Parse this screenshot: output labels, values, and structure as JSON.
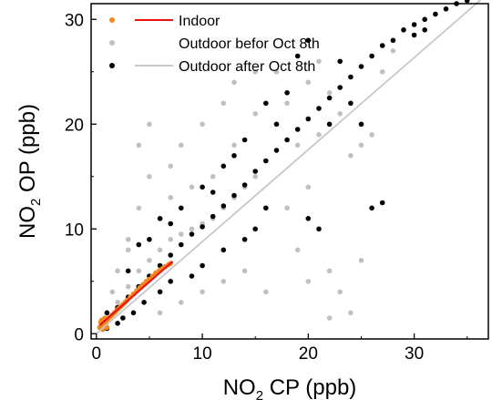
{
  "chart_data": {
    "type": "scatter",
    "xlabel": {
      "base": "NO",
      "sub": "2",
      "rest": " CP (ppb)"
    },
    "ylabel": {
      "base": "NO",
      "sub": "2",
      "rest": " OP (ppb)"
    },
    "xlim": [
      -0.5,
      37
    ],
    "ylim": [
      -0.5,
      31.5
    ],
    "xticks": [
      0,
      10,
      20,
      30
    ],
    "yticks": [
      0,
      10,
      20,
      30
    ],
    "legend_position": "top-left",
    "series": [
      {
        "name": "Outdoor befor Oct 8th",
        "color": "#c0c0c0",
        "marker": "dot",
        "approx_points": [
          [
            1.0,
            1.5
          ],
          [
            2.0,
            3.0
          ],
          [
            3.0,
            4.5
          ],
          [
            4.0,
            6.0
          ],
          [
            5.0,
            7.0
          ],
          [
            6.0,
            8.0
          ],
          [
            7.0,
            9.0
          ],
          [
            8.0,
            9.5
          ],
          [
            9.0,
            10.0
          ],
          [
            10.0,
            10.5
          ],
          [
            11.0,
            11.0
          ],
          [
            12.0,
            12.0
          ],
          [
            13.0,
            13.0
          ],
          [
            14.0,
            14.0
          ],
          [
            15.0,
            15.0
          ],
          [
            3.0,
            8.0
          ],
          [
            4.0,
            12.0
          ],
          [
            5.0,
            15.0
          ],
          [
            4.0,
            18.0
          ],
          [
            5.0,
            20.0
          ],
          [
            7.0,
            16.0
          ],
          [
            8.0,
            18.0
          ],
          [
            10.0,
            20.0
          ],
          [
            12.0,
            22.0
          ],
          [
            13.0,
            24.0
          ],
          [
            15.0,
            25.0
          ],
          [
            17.0,
            25.0
          ],
          [
            18.0,
            22.0
          ],
          [
            20.0,
            24.0
          ],
          [
            21.0,
            26.0
          ],
          [
            22.0,
            23.0
          ],
          [
            20.0,
            14.0
          ],
          [
            18.0,
            12.0
          ],
          [
            19.0,
            8.0
          ],
          [
            20.0,
            5.0
          ],
          [
            22.0,
            6.0
          ],
          [
            23.0,
            4.0
          ],
          [
            24.0,
            2.0
          ],
          [
            22.0,
            1.5
          ],
          [
            25.0,
            7.0
          ],
          [
            16.0,
            4.0
          ],
          [
            14.0,
            6.0
          ],
          [
            12.0,
            5.0
          ],
          [
            10.0,
            4.0
          ],
          [
            6.0,
            2.0
          ],
          [
            8.0,
            3.0
          ],
          [
            2.0,
            6.0
          ],
          [
            3.0,
            9.0
          ],
          [
            1.5,
            4.0
          ],
          [
            6.0,
            11.0
          ],
          [
            7.0,
            13.0
          ],
          [
            9.0,
            14.0
          ],
          [
            11.0,
            15.0
          ],
          [
            13.0,
            18.0
          ],
          [
            15.0,
            21.0
          ],
          [
            17.0,
            20.0
          ],
          [
            19.0,
            18.0
          ],
          [
            21.0,
            19.0
          ],
          [
            23.0,
            21.0
          ],
          [
            24.0,
            17.0
          ],
          [
            25.0,
            18.0
          ],
          [
            26.0,
            19.0
          ],
          [
            27.0,
            25.0
          ],
          [
            28.0,
            27.0
          ]
        ]
      },
      {
        "name": "Outdoor after Oct 8th",
        "color": "#000000",
        "marker": "dot",
        "approx_points": [
          [
            1.0,
            2.0
          ],
          [
            2.0,
            2.5
          ],
          [
            3.0,
            3.5
          ],
          [
            4.0,
            4.5
          ],
          [
            5.0,
            5.5
          ],
          [
            6.0,
            6.5
          ],
          [
            7.0,
            7.5
          ],
          [
            8.0,
            8.5
          ],
          [
            9.0,
            9.5
          ],
          [
            10.0,
            10.2
          ],
          [
            11.0,
            11.2
          ],
          [
            12.0,
            12.2
          ],
          [
            13.0,
            13.2
          ],
          [
            14.0,
            14.2
          ],
          [
            15.0,
            15.5
          ],
          [
            16.0,
            16.5
          ],
          [
            17.0,
            17.5
          ],
          [
            18.0,
            18.5
          ],
          [
            19.0,
            19.5
          ],
          [
            20.0,
            20.5
          ],
          [
            21.0,
            21.5
          ],
          [
            22.0,
            22.5
          ],
          [
            23.0,
            23.5
          ],
          [
            24.0,
            24.5
          ],
          [
            25.0,
            25.5
          ],
          [
            26.0,
            26.5
          ],
          [
            27.0,
            27.5
          ],
          [
            28.0,
            28.0
          ],
          [
            29.0,
            29.0
          ],
          [
            30.0,
            29.5
          ],
          [
            31.0,
            30.0
          ],
          [
            32.0,
            30.5
          ],
          [
            33.0,
            31.0
          ],
          [
            34.0,
            31.5
          ],
          [
            35.0,
            31.8
          ],
          [
            30.0,
            28.5
          ],
          [
            31.0,
            29.0
          ],
          [
            16.0,
            22.0
          ],
          [
            18.0,
            23.0
          ],
          [
            19.0,
            26.5
          ],
          [
            20.0,
            28.0
          ],
          [
            22.0,
            20.0
          ],
          [
            25.0,
            20.0
          ],
          [
            26.0,
            12.0
          ],
          [
            27.0,
            12.5
          ],
          [
            21.0,
            10.0
          ],
          [
            20.0,
            11.0
          ],
          [
            12.0,
            8.0
          ],
          [
            10.0,
            6.5
          ],
          [
            9.0,
            5.5
          ],
          [
            14.0,
            9.0
          ],
          [
            16.0,
            12.0
          ],
          [
            15.0,
            10.0
          ],
          [
            3.0,
            6.0
          ],
          [
            4.0,
            8.5
          ],
          [
            5.0,
            9.0
          ],
          [
            6.0,
            11.0
          ],
          [
            7.0,
            10.5
          ],
          [
            8.0,
            12.0
          ],
          [
            10.0,
            14.0
          ],
          [
            11.0,
            13.5
          ],
          [
            12.0,
            16.0
          ],
          [
            13.0,
            17.0
          ],
          [
            14.0,
            18.5
          ],
          [
            17.0,
            20.0
          ],
          [
            23.0,
            26.0
          ],
          [
            24.0,
            22.0
          ],
          [
            2.5,
            1.5
          ],
          [
            3.5,
            2.0
          ],
          [
            4.5,
            3.0
          ],
          [
            1.0,
            0.5
          ],
          [
            2.0,
            1.0
          ],
          [
            6.0,
            4.0
          ],
          [
            7.0,
            5.0
          ]
        ]
      },
      {
        "name": "Indoor",
        "color": "#f08a1e",
        "marker": "dot",
        "approx_points": [
          [
            0.3,
            0.6
          ],
          [
            0.5,
            0.8
          ],
          [
            0.7,
            1.0
          ],
          [
            0.9,
            1.2
          ],
          [
            1.1,
            1.4
          ],
          [
            1.3,
            1.6
          ],
          [
            1.5,
            1.8
          ],
          [
            1.7,
            2.0
          ],
          [
            1.9,
            2.2
          ],
          [
            2.1,
            2.4
          ],
          [
            2.3,
            2.6
          ],
          [
            2.5,
            2.8
          ],
          [
            2.7,
            3.0
          ],
          [
            2.9,
            3.2
          ],
          [
            3.2,
            3.5
          ],
          [
            3.5,
            3.8
          ],
          [
            3.8,
            4.1
          ],
          [
            4.1,
            4.4
          ],
          [
            4.4,
            4.7
          ],
          [
            4.7,
            5.0
          ],
          [
            5.0,
            5.2
          ],
          [
            5.3,
            5.5
          ],
          [
            5.6,
            5.8
          ],
          [
            5.9,
            6.0
          ],
          [
            6.2,
            6.2
          ],
          [
            6.5,
            6.4
          ],
          [
            6.8,
            6.6
          ],
          [
            7.0,
            6.7
          ],
          [
            0.4,
            1.1
          ],
          [
            0.6,
            0.4
          ],
          [
            0.8,
            1.5
          ],
          [
            1.0,
            0.6
          ],
          [
            0.5,
            1.3
          ],
          [
            0.9,
            0.9
          ]
        ]
      }
    ],
    "fit_lines": [
      {
        "name": "Indoor",
        "color": "#ee1111",
        "from": [
          0.3,
          0.8
        ],
        "to": [
          7.2,
          6.9
        ]
      },
      {
        "name": "Outdoor after Oct 8th",
        "color": "#c8c8c8",
        "from": [
          0.0,
          0.0
        ],
        "to": [
          37.0,
          32.5
        ]
      }
    ],
    "legend": [
      {
        "label": "Indoor",
        "marker_color": "#f08a1e",
        "line_color": "#ee1111"
      },
      {
        "label": "Outdoor befor Oct 8th",
        "marker_color": "#c0c0c0",
        "line_color": ""
      },
      {
        "label": "Outdoor after Oct 8th",
        "marker_color": "#000000",
        "line_color": "#c8c8c8"
      }
    ]
  }
}
